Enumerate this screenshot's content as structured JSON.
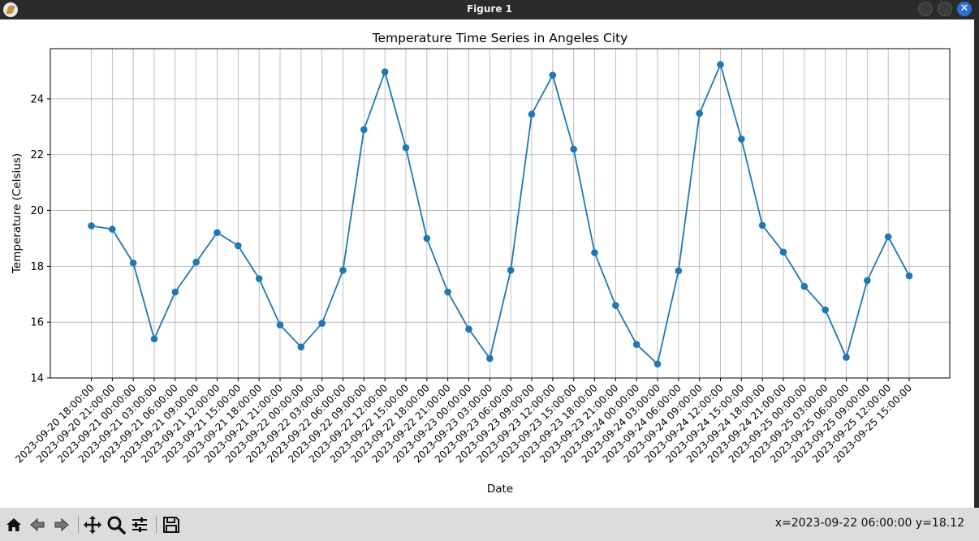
{
  "window": {
    "title": "Figure 1"
  },
  "toolbar": {
    "buttons": [
      {
        "name": "home-icon"
      },
      {
        "name": "back-arrow-icon"
      },
      {
        "name": "forward-arrow-icon"
      },
      {
        "name": "pan-icon"
      },
      {
        "name": "zoom-icon"
      },
      {
        "name": "configure-subplots-icon"
      },
      {
        "name": "save-icon"
      }
    ],
    "coordinates": "x=2023-09-22 06:00:00 y=18.12"
  },
  "chart_data": {
    "type": "line",
    "title": "Temperature Time Series in Angeles City",
    "xlabel": "Date",
    "ylabel": "Temperature (Celsius)",
    "x": [
      "2023-09-20 18:00:00",
      "2023-09-20 21:00:00",
      "2023-09-21 00:00:00",
      "2023-09-21 03:00:00",
      "2023-09-21 06:00:00",
      "2023-09-21 09:00:00",
      "2023-09-21 12:00:00",
      "2023-09-21 15:00:00",
      "2023-09-21 18:00:00",
      "2023-09-21 21:00:00",
      "2023-09-22 00:00:00",
      "2023-09-22 03:00:00",
      "2023-09-22 06:00:00",
      "2023-09-22 09:00:00",
      "2023-09-22 12:00:00",
      "2023-09-22 15:00:00",
      "2023-09-22 18:00:00",
      "2023-09-22 21:00:00",
      "2023-09-23 00:00:00",
      "2023-09-23 03:00:00",
      "2023-09-23 06:00:00",
      "2023-09-23 09:00:00",
      "2023-09-23 12:00:00",
      "2023-09-23 15:00:00",
      "2023-09-23 18:00:00",
      "2023-09-23 21:00:00",
      "2023-09-24 00:00:00",
      "2023-09-24 03:00:00",
      "2023-09-24 06:00:00",
      "2023-09-24 09:00:00",
      "2023-09-24 12:00:00",
      "2023-09-24 15:00:00",
      "2023-09-24 18:00:00",
      "2023-09-24 21:00:00",
      "2023-09-25 00:00:00",
      "2023-09-25 03:00:00",
      "2023-09-25 06:00:00",
      "2023-09-25 09:00:00",
      "2023-09-25 12:00:00",
      "2023-09-25 15:00:00"
    ],
    "series": [
      {
        "values": [
          19.45,
          19.33,
          18.12,
          15.4,
          17.08,
          18.15,
          19.21,
          18.74,
          17.56,
          15.9,
          15.11,
          15.96,
          17.86,
          22.9,
          24.97,
          22.25,
          19.0,
          17.08,
          15.75,
          14.7,
          17.86,
          23.45,
          24.85,
          22.2,
          18.49,
          16.6,
          15.2,
          14.5,
          17.84,
          23.48,
          25.23,
          22.56,
          19.47,
          18.51,
          17.28,
          16.44,
          14.74,
          17.49,
          19.06,
          17.66
        ],
        "color": "#1f77b4"
      }
    ],
    "ylim": [
      14,
      25.8
    ],
    "yticks": [
      14,
      16,
      18,
      20,
      22,
      24
    ],
    "grid": true,
    "legend": "none"
  }
}
